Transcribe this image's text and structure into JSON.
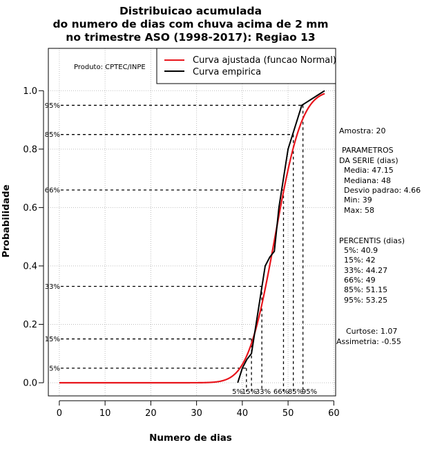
{
  "chart_data": {
    "type": "line",
    "title": [
      "Distribuicao acumulada",
      "do numero de dias com chuva acima de 2 mm",
      "no trimestre ASO (1998-2017): Regiao 13"
    ],
    "xlabel": "Numero de dias",
    "ylabel": "Probabilidade",
    "xlim": [
      -2.4,
      60.4
    ],
    "ylim": [
      -0.045,
      1.145
    ],
    "xticks": [
      0,
      10,
      20,
      30,
      40,
      50,
      60
    ],
    "yticks": [
      0.0,
      0.2,
      0.4,
      0.6,
      0.8,
      1.0
    ],
    "ytick_labels": [
      "0.0",
      "0.2",
      "0.4",
      "0.6",
      "0.8",
      "1.0"
    ],
    "grid": true,
    "producer": "Produto: CPTEC/INPE",
    "legend": {
      "placement": "top-right",
      "entries": [
        {
          "label": "Curva ajustada (funcao Normal)",
          "color": "#e8141b"
        },
        {
          "label": "Curva empirica",
          "color": "#000000"
        }
      ]
    },
    "normal_fit": {
      "mean": 47.15,
      "sd": 4.66,
      "x_from": 0,
      "x_to": 58,
      "color": "#e8141b"
    },
    "empirical": {
      "color": "#000000",
      "x": [
        39,
        40,
        41,
        42,
        43,
        44,
        45,
        46,
        47,
        48,
        49,
        50,
        51,
        52,
        53,
        54,
        55,
        56,
        57,
        58
      ],
      "y": [
        0.0,
        0.05,
        0.08,
        0.1,
        0.2,
        0.3,
        0.4,
        0.43,
        0.45,
        0.6,
        0.7,
        0.8,
        0.85,
        0.9,
        0.95,
        0.96,
        0.97,
        0.98,
        0.99,
        1.0
      ]
    },
    "percentile_lines": [
      {
        "label": "5%",
        "y": 0.05,
        "x": 40.9
      },
      {
        "label": "15%",
        "y": 0.15,
        "x": 42
      },
      {
        "label": "33%",
        "y": 0.33,
        "x": 44.27
      },
      {
        "label": "66%",
        "y": 0.66,
        "x": 49
      },
      {
        "label": "85%",
        "y": 0.85,
        "x": 51.15
      },
      {
        "label": "95%",
        "y": 0.95,
        "x": 53.25
      }
    ]
  },
  "side_panel": {
    "amostra": "Amostra: 20",
    "parametros_title_1": "PARAMETROS",
    "parametros_title_2": "DA SERIE (dias)",
    "media": "Media: 47.15",
    "mediana": "Mediana: 48",
    "desvio": "Desvio padrao: 4.66",
    "min": "Min: 39",
    "max": "Max: 58",
    "percentis_title": "PERCENTIS (dias)",
    "p5": "5%: 40.9",
    "p15": "15%: 42",
    "p33": "33%: 44.27",
    "p66": "66%: 49",
    "p85": "85%: 51.15",
    "p95": "95%: 53.25",
    "curtose": "Curtose: 1.07",
    "assimetria": "Assimetria: -0.55"
  }
}
